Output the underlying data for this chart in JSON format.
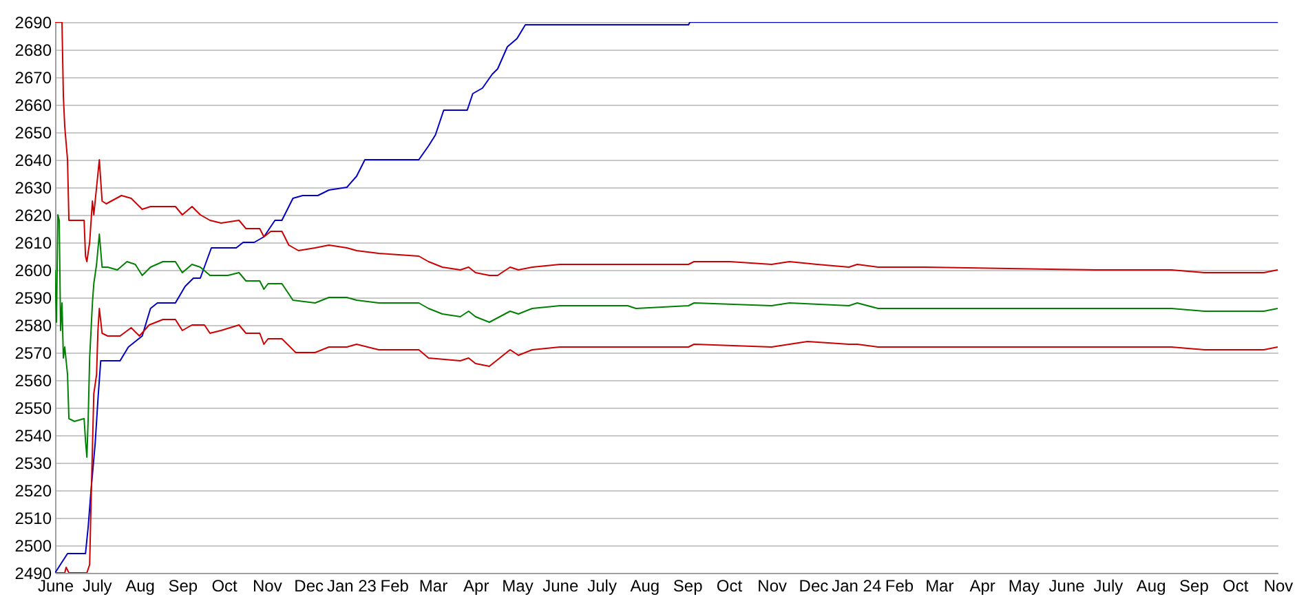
{
  "chart_data": {
    "type": "line",
    "xlim": [
      "2022-06-01",
      "2024-11-01"
    ],
    "ylim": [
      2490,
      2690
    ],
    "xticks": [
      {
        "value": "2022-06-01",
        "label": "June"
      },
      {
        "value": "2022-07-01",
        "label": "July"
      },
      {
        "value": "2022-08-01",
        "label": "Aug"
      },
      {
        "value": "2022-09-01",
        "label": "Sep"
      },
      {
        "value": "2022-10-01",
        "label": "Oct"
      },
      {
        "value": "2022-11-01",
        "label": "Nov"
      },
      {
        "value": "2022-12-01",
        "label": "Dec"
      },
      {
        "value": "2023-01-01",
        "label": "Jan 23"
      },
      {
        "value": "2023-02-01",
        "label": "Feb"
      },
      {
        "value": "2023-03-01",
        "label": "Mar"
      },
      {
        "value": "2023-04-01",
        "label": "Apr"
      },
      {
        "value": "2023-05-01",
        "label": "May"
      },
      {
        "value": "2023-06-01",
        "label": "June"
      },
      {
        "value": "2023-07-01",
        "label": "July"
      },
      {
        "value": "2023-08-01",
        "label": "Aug"
      },
      {
        "value": "2023-09-01",
        "label": "Sep"
      },
      {
        "value": "2023-10-01",
        "label": "Oct"
      },
      {
        "value": "2023-11-01",
        "label": "Nov"
      },
      {
        "value": "2023-12-01",
        "label": "Dec"
      },
      {
        "value": "2024-01-01",
        "label": "Jan 24"
      },
      {
        "value": "2024-02-01",
        "label": "Feb"
      },
      {
        "value": "2024-03-01",
        "label": "Mar"
      },
      {
        "value": "2024-04-01",
        "label": "Apr"
      },
      {
        "value": "2024-05-01",
        "label": "May"
      },
      {
        "value": "2024-06-01",
        "label": "June"
      },
      {
        "value": "2024-07-01",
        "label": "July"
      },
      {
        "value": "2024-08-01",
        "label": "Aug"
      },
      {
        "value": "2024-09-01",
        "label": "Sep"
      },
      {
        "value": "2024-10-01",
        "label": "Oct"
      },
      {
        "value": "2024-11-01",
        "label": "Nov"
      }
    ],
    "yticks": [
      2490,
      2500,
      2510,
      2520,
      2530,
      2540,
      2550,
      2560,
      2570,
      2580,
      2590,
      2600,
      2610,
      2620,
      2630,
      2640,
      2650,
      2660,
      2670,
      2680,
      2690
    ],
    "grid": "y",
    "legend": false,
    "marker": "none",
    "line_style": "solid",
    "series": [
      {
        "color": "#0000c8",
        "x": [
          "2022-06-01",
          "2022-06-10",
          "2022-06-23",
          "2022-06-25",
          "2022-06-27",
          "2022-06-30",
          "2022-07-02",
          "2022-07-04",
          "2022-07-18",
          "2022-07-24",
          "2022-07-29",
          "2022-08-03",
          "2022-08-09",
          "2022-08-14",
          "2022-08-27",
          "2022-09-03",
          "2022-09-09",
          "2022-09-14",
          "2022-09-22",
          "2022-10-10",
          "2022-10-15",
          "2022-10-23",
          "2022-10-30",
          "2022-11-07",
          "2022-11-12",
          "2022-11-20",
          "2022-11-27",
          "2022-12-08",
          "2022-12-16",
          "2022-12-29",
          "2023-01-05",
          "2023-01-11",
          "2023-02-19",
          "2023-02-26",
          "2023-03-03",
          "2023-03-09",
          "2023-03-26",
          "2023-03-30",
          "2023-04-06",
          "2023-04-13",
          "2023-04-17",
          "2023-04-24",
          "2023-05-01",
          "2023-05-07",
          "2023-09-02",
          "2023-09-03",
          "2024-11-01"
        ],
        "values": [
          2490,
          2497,
          2497,
          2507,
          2520,
          2537,
          2553,
          2567,
          2567,
          2572,
          2574,
          2576,
          2586,
          2588,
          2588,
          2594,
          2597,
          2597,
          2608,
          2608,
          2610,
          2610,
          2612,
          2618,
          2618,
          2626,
          2627,
          2627,
          2629,
          2630,
          2634,
          2640,
          2640,
          2645,
          2649,
          2658,
          2658,
          2664,
          2666,
          2671,
          2673,
          2681,
          2684,
          2689,
          2689,
          2690,
          2690
        ]
      },
      {
        "color": "#cc0000",
        "x": [
          "2022-06-01",
          "2022-06-06",
          "2022-06-07",
          "2022-06-08",
          "2022-06-10",
          "2022-06-11",
          "2022-06-22",
          "2022-06-23",
          "2022-06-24",
          "2022-06-26",
          "2022-06-28",
          "2022-06-29",
          "2022-07-03",
          "2022-07-05",
          "2022-07-08",
          "2022-07-19",
          "2022-07-26",
          "2022-08-03",
          "2022-08-09",
          "2022-08-18",
          "2022-08-27",
          "2022-09-01",
          "2022-09-08",
          "2022-09-14",
          "2022-09-21",
          "2022-09-29",
          "2022-10-12",
          "2022-10-17",
          "2022-10-27",
          "2022-10-30",
          "2022-11-04",
          "2022-11-12",
          "2022-11-17",
          "2022-11-24",
          "2022-12-06",
          "2022-12-16",
          "2022-12-29",
          "2023-01-05",
          "2023-01-21",
          "2023-02-19",
          "2023-02-26",
          "2023-03-08",
          "2023-03-21",
          "2023-03-27",
          "2023-04-01",
          "2023-04-11",
          "2023-04-17",
          "2023-04-26",
          "2023-05-02",
          "2023-05-12",
          "2023-06-01",
          "2023-07-20",
          "2023-09-02",
          "2023-09-06",
          "2023-10-02",
          "2023-11-01",
          "2023-11-14",
          "2023-12-04",
          "2023-12-27",
          "2024-01-02",
          "2024-01-17",
          "2024-02-20",
          "2024-06-23",
          "2024-08-16",
          "2024-09-09",
          "2024-10-22",
          "2024-11-01"
        ],
        "values": [
          2690,
          2690,
          2663,
          2652,
          2640,
          2618,
          2618,
          2605,
          2603,
          2610,
          2625,
          2620,
          2640,
          2625,
          2624,
          2627,
          2626,
          2622,
          2623,
          2623,
          2623,
          2620,
          2623,
          2620,
          2618,
          2617,
          2618,
          2615,
          2615,
          2612,
          2614,
          2614,
          2609,
          2607,
          2608,
          2609,
          2608,
          2607,
          2606,
          2605,
          2603,
          2601,
          2600,
          2601,
          2599,
          2598,
          2598,
          2601,
          2600,
          2601,
          2602,
          2602,
          2602,
          2603,
          2603,
          2602,
          2603,
          2602,
          2601,
          2602,
          2601,
          2601,
          2600,
          2600,
          2599,
          2599,
          2600
        ]
      },
      {
        "color": "#008000",
        "x": [
          "2022-06-01",
          "2022-06-02",
          "2022-06-03",
          "2022-06-04",
          "2022-06-05",
          "2022-06-06",
          "2022-06-07",
          "2022-06-08",
          "2022-06-10",
          "2022-06-11",
          "2022-06-15",
          "2022-06-22",
          "2022-06-23",
          "2022-06-24",
          "2022-06-25",
          "2022-06-26",
          "2022-06-28",
          "2022-06-29",
          "2022-07-01",
          "2022-07-03",
          "2022-07-05",
          "2022-07-09",
          "2022-07-16",
          "2022-07-23",
          "2022-07-29",
          "2022-08-03",
          "2022-08-09",
          "2022-08-18",
          "2022-08-27",
          "2022-09-01",
          "2022-09-08",
          "2022-09-14",
          "2022-09-21",
          "2022-10-04",
          "2022-10-12",
          "2022-10-17",
          "2022-10-27",
          "2022-10-30",
          "2022-11-02",
          "2022-11-12",
          "2022-11-20",
          "2022-12-06",
          "2022-12-16",
          "2022-12-29",
          "2023-01-05",
          "2023-01-21",
          "2023-02-19",
          "2023-02-26",
          "2023-03-08",
          "2023-03-21",
          "2023-03-27",
          "2023-04-01",
          "2023-04-11",
          "2023-04-26",
          "2023-05-02",
          "2023-05-12",
          "2023-06-01",
          "2023-07-20",
          "2023-07-26",
          "2023-09-02",
          "2023-09-06",
          "2023-11-01",
          "2023-11-14",
          "2023-12-27",
          "2024-01-02",
          "2024-01-17",
          "2024-06-23",
          "2024-08-16",
          "2024-09-09",
          "2024-10-22",
          "2024-11-01"
        ],
        "values": [
          2600,
          2581,
          2620,
          2618,
          2578,
          2588,
          2568,
          2572,
          2562,
          2546,
          2545,
          2546,
          2538,
          2532,
          2547,
          2568,
          2588,
          2595,
          2602,
          2613,
          2601,
          2601,
          2600,
          2603,
          2602,
          2598,
          2601,
          2603,
          2603,
          2599,
          2602,
          2601,
          2598,
          2598,
          2599,
          2596,
          2596,
          2593,
          2595,
          2595,
          2589,
          2588,
          2590,
          2590,
          2589,
          2588,
          2588,
          2586,
          2584,
          2583,
          2585,
          2583,
          2581,
          2585,
          2584,
          2586,
          2587,
          2587,
          2586,
          2587,
          2588,
          2587,
          2588,
          2587,
          2588,
          2586,
          2586,
          2586,
          2585,
          2585,
          2586
        ]
      },
      {
        "color": "#cc0000",
        "x": [
          "2022-06-01",
          "2022-06-08",
          "2022-06-09",
          "2022-06-11",
          "2022-06-24",
          "2022-06-26",
          "2022-06-27",
          "2022-06-29",
          "2022-07-01",
          "2022-07-02",
          "2022-07-03",
          "2022-07-05",
          "2022-07-09",
          "2022-07-18",
          "2022-07-26",
          "2022-08-01",
          "2022-08-08",
          "2022-08-18",
          "2022-08-27",
          "2022-09-01",
          "2022-09-08",
          "2022-09-17",
          "2022-09-21",
          "2022-09-29",
          "2022-10-12",
          "2022-10-17",
          "2022-10-27",
          "2022-10-30",
          "2022-11-02",
          "2022-11-12",
          "2022-11-22",
          "2022-12-06",
          "2022-12-16",
          "2022-12-29",
          "2023-01-05",
          "2023-01-21",
          "2023-02-19",
          "2023-02-26",
          "2023-03-21",
          "2023-03-27",
          "2023-04-01",
          "2023-04-11",
          "2023-04-26",
          "2023-05-02",
          "2023-05-12",
          "2023-06-01",
          "2023-09-02",
          "2023-09-06",
          "2023-11-01",
          "2023-11-14",
          "2023-11-27",
          "2023-12-27",
          "2024-01-02",
          "2024-01-17",
          "2024-06-23",
          "2024-08-16",
          "2024-09-09",
          "2024-10-22",
          "2024-11-01"
        ],
        "values": [
          2490,
          2490,
          2492,
          2490,
          2490,
          2493,
          2515,
          2555,
          2562,
          2578,
          2586,
          2577,
          2576,
          2576,
          2579,
          2576,
          2580,
          2582,
          2582,
          2578,
          2580,
          2580,
          2577,
          2578,
          2580,
          2577,
          2577,
          2573,
          2575,
          2575,
          2570,
          2570,
          2572,
          2572,
          2573,
          2571,
          2571,
          2568,
          2567,
          2568,
          2566,
          2565,
          2571,
          2569,
          2571,
          2572,
          2572,
          2573,
          2572,
          2573,
          2574,
          2573,
          2573,
          2572,
          2572,
          2572,
          2571,
          2571,
          2572
        ]
      }
    ]
  }
}
